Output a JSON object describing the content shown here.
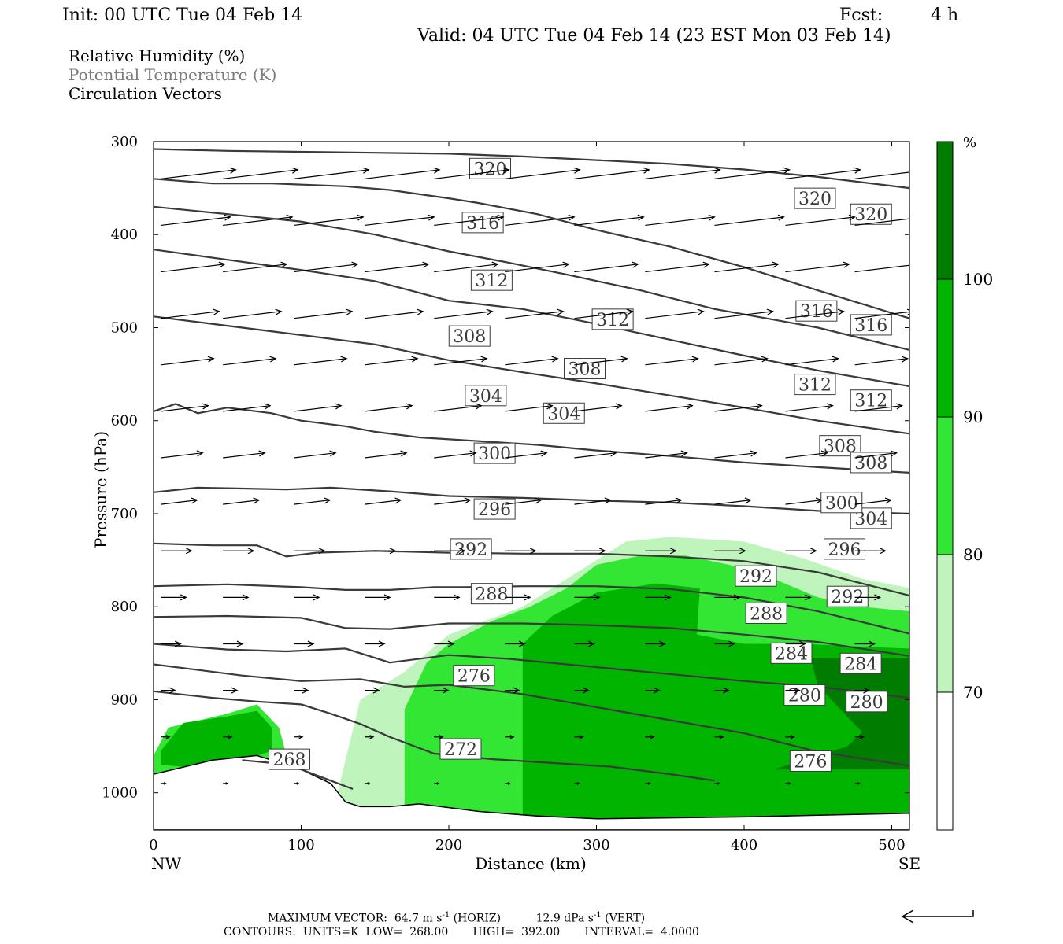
{
  "header": {
    "init": "Init: 00 UTC Tue 04 Feb 14",
    "fcst_label": "Fcst:",
    "fcst_value": "4 h",
    "valid": "Valid: 04 UTC Tue 04 Feb 14 (23 EST Mon 03 Feb 14)"
  },
  "fields": [
    {
      "label": "Relative Humidity (%)",
      "color": "#000000"
    },
    {
      "label": "Potential Temperature (K)",
      "color": "#7a7a7a"
    },
    {
      "label": "Circulation Vectors",
      "color": "#000000"
    }
  ],
  "chart_data": {
    "type": "cross-section",
    "ylabel": "Pressure (hPa)",
    "xlabel": "Distance (km)",
    "x_ticks": [
      0,
      100,
      200,
      300,
      400,
      500
    ],
    "y_ticks": [
      300,
      400,
      500,
      600,
      700,
      800,
      900,
      1000
    ],
    "xlim": [
      0,
      512
    ],
    "ylim": [
      300,
      1040
    ],
    "y_scale": "linear-inverted",
    "left_end_label": "NW",
    "right_end_label": "SE",
    "colorbar": {
      "unit": "%",
      "levels": [
        70,
        80,
        90,
        100
      ],
      "colors": [
        "#ffffff",
        "#bff5bc",
        "#33e633",
        "#00b400",
        "#007d00"
      ]
    },
    "theta_contours": [
      {
        "value": 320,
        "points": [
          [
            0,
            308
          ],
          [
            50,
            310
          ],
          [
            100,
            311
          ],
          [
            150,
            312
          ],
          [
            200,
            313
          ],
          [
            250,
            316
          ],
          [
            300,
            320
          ],
          [
            350,
            324
          ],
          [
            400,
            330
          ],
          [
            450,
            338
          ],
          [
            512,
            350
          ]
        ],
        "labels": [
          [
            228,
            329
          ],
          [
            448,
            361
          ],
          [
            486,
            378
          ]
        ]
      },
      {
        "value": 316,
        "points": [
          [
            0,
            340
          ],
          [
            40,
            345
          ],
          [
            80,
            345
          ],
          [
            130,
            348
          ],
          [
            160,
            352
          ],
          [
            200,
            361
          ],
          [
            220,
            366
          ],
          [
            260,
            378
          ],
          [
            300,
            395
          ],
          [
            350,
            413
          ],
          [
            400,
            435
          ],
          [
            450,
            460
          ],
          [
            512,
            490
          ]
        ],
        "labels": [
          [
            223,
            387
          ],
          [
            449,
            482
          ],
          [
            486,
            497
          ]
        ]
      },
      {
        "value": 312,
        "points": [
          [
            0,
            370
          ],
          [
            50,
            378
          ],
          [
            100,
            386
          ],
          [
            150,
            400
          ],
          [
            200,
            418
          ],
          [
            240,
            430
          ],
          [
            280,
            443
          ],
          [
            330,
            460
          ],
          [
            380,
            480
          ],
          [
            450,
            500
          ],
          [
            512,
            524
          ]
        ],
        "labels": [
          [
            229,
            449
          ],
          [
            311,
            491
          ],
          [
            448,
            561
          ],
          [
            486,
            578
          ]
        ]
      },
      {
        "value": 308,
        "points": [
          [
            0,
            416
          ],
          [
            50,
            427
          ],
          [
            100,
            438
          ],
          [
            150,
            450
          ],
          [
            200,
            471
          ],
          [
            250,
            480
          ],
          [
            300,
            496
          ],
          [
            350,
            513
          ],
          [
            400,
            530
          ],
          [
            450,
            546
          ],
          [
            512,
            563
          ]
        ],
        "labels": [
          [
            214,
            509
          ],
          [
            292,
            544
          ],
          [
            465,
            627
          ],
          [
            486,
            645
          ]
        ]
      },
      {
        "value": 304,
        "points": [
          [
            0,
            488
          ],
          [
            50,
            498
          ],
          [
            100,
            508
          ],
          [
            150,
            518
          ],
          [
            200,
            535
          ],
          [
            250,
            548
          ],
          [
            300,
            560
          ],
          [
            350,
            573
          ],
          [
            400,
            586
          ],
          [
            450,
            600
          ],
          [
            512,
            614
          ]
        ],
        "labels": [
          [
            225,
            573
          ],
          [
            278,
            592
          ],
          [
            486,
            705
          ]
        ]
      },
      {
        "value": 300,
        "points": [
          [
            0,
            590
          ],
          [
            15,
            582
          ],
          [
            30,
            592
          ],
          [
            50,
            586
          ],
          [
            80,
            592
          ],
          [
            100,
            600
          ],
          [
            130,
            606
          ],
          [
            150,
            612
          ],
          [
            180,
            618
          ],
          [
            220,
            622
          ],
          [
            260,
            626
          ],
          [
            300,
            632
          ],
          [
            350,
            638
          ],
          [
            400,
            645
          ],
          [
            450,
            650
          ],
          [
            512,
            656
          ]
        ],
        "labels": [
          [
            231,
            635
          ],
          [
            466,
            688
          ]
        ]
      },
      {
        "value": 296,
        "points": [
          [
            0,
            677
          ],
          [
            30,
            672
          ],
          [
            60,
            673
          ],
          [
            90,
            674
          ],
          [
            120,
            672
          ],
          [
            160,
            676
          ],
          [
            200,
            681
          ],
          [
            250,
            683
          ],
          [
            300,
            686
          ],
          [
            350,
            688
          ],
          [
            400,
            692
          ],
          [
            450,
            697
          ],
          [
            512,
            700
          ]
        ],
        "labels": [
          [
            231,
            695
          ],
          [
            468,
            738
          ]
        ]
      },
      {
        "value": 292,
        "points": [
          [
            0,
            732
          ],
          [
            40,
            734
          ],
          [
            70,
            734
          ],
          [
            90,
            746
          ],
          [
            110,
            742
          ],
          [
            150,
            740
          ],
          [
            200,
            742
          ],
          [
            250,
            743
          ],
          [
            300,
            743
          ],
          [
            350,
            746
          ],
          [
            400,
            751
          ],
          [
            450,
            763
          ],
          [
            512,
            788
          ]
        ],
        "labels": [
          [
            215,
            738
          ],
          [
            408,
            767
          ],
          [
            470,
            789
          ]
        ]
      },
      {
        "value": 288,
        "points": [
          [
            0,
            778
          ],
          [
            50,
            776
          ],
          [
            100,
            779
          ],
          [
            130,
            782
          ],
          [
            160,
            782
          ],
          [
            190,
            779
          ],
          [
            210,
            779
          ],
          [
            250,
            778
          ],
          [
            300,
            778
          ],
          [
            350,
            781
          ],
          [
            400,
            790
          ],
          [
            450,
            805
          ],
          [
            512,
            829
          ]
        ],
        "labels": [
          [
            229,
            786
          ],
          [
            415,
            807
          ]
        ]
      },
      {
        "value": 284,
        "points": [
          [
            0,
            811
          ],
          [
            50,
            810
          ],
          [
            100,
            812
          ],
          [
            130,
            823
          ],
          [
            160,
            824
          ],
          [
            200,
            818
          ],
          [
            250,
            818
          ],
          [
            300,
            820
          ],
          [
            350,
            823
          ],
          [
            400,
            830
          ],
          [
            450,
            838
          ],
          [
            512,
            853
          ]
        ],
        "labels": [
          [
            432,
            850
          ],
          [
            479,
            861
          ]
        ]
      },
      {
        "value": 280,
        "points": [
          [
            0,
            840
          ],
          [
            50,
            846
          ],
          [
            90,
            848
          ],
          [
            130,
            845
          ],
          [
            160,
            860
          ],
          [
            200,
            852
          ],
          [
            240,
            856
          ],
          [
            280,
            862
          ],
          [
            320,
            868
          ],
          [
            360,
            874
          ],
          [
            400,
            880
          ],
          [
            450,
            886
          ],
          [
            512,
            898
          ]
        ],
        "labels": [
          [
            441,
            895
          ],
          [
            483,
            902
          ]
        ]
      },
      {
        "value": 276,
        "points": [
          [
            0,
            862
          ],
          [
            60,
            874
          ],
          [
            100,
            880
          ],
          [
            140,
            878
          ],
          [
            170,
            886
          ],
          [
            200,
            884
          ],
          [
            250,
            894
          ],
          [
            300,
            908
          ],
          [
            350,
            922
          ],
          [
            400,
            936
          ],
          [
            450,
            956
          ],
          [
            512,
            971
          ]
        ],
        "labels": [
          [
            217,
            874
          ],
          [
            445,
            966
          ]
        ]
      },
      {
        "value": 272,
        "points": [
          [
            0,
            891
          ],
          [
            40,
            898
          ],
          [
            70,
            902
          ],
          [
            100,
            905
          ],
          [
            120,
            915
          ],
          [
            140,
            926
          ],
          [
            160,
            940
          ],
          [
            190,
            958
          ],
          [
            230,
            964
          ],
          [
            270,
            968
          ],
          [
            310,
            972
          ],
          [
            350,
            980
          ],
          [
            380,
            987
          ]
        ],
        "labels": [
          [
            208,
            953
          ]
        ]
      },
      {
        "value": 268,
        "points": [
          [
            60,
            965
          ],
          [
            80,
            968
          ],
          [
            100,
            975
          ],
          [
            120,
            987
          ],
          [
            135,
            996
          ]
        ],
        "labels": [
          [
            92,
            964
          ]
        ]
      }
    ],
    "circulation_vectors": {
      "x_km": [
        5,
        47,
        95,
        143,
        190,
        238,
        285,
        333,
        380,
        428,
        475
      ],
      "pressure_levels": [
        340,
        390,
        440,
        490,
        540,
        590,
        640,
        690,
        740,
        790,
        840,
        890,
        940,
        990
      ]
    },
    "max_vector": {
      "label": "MAXIMUM VECTOR:",
      "horiz": "64.7 m s",
      "horiz_exp": "-1",
      "horiz_tag": "(HORIZ)",
      "vert": "12.9 dPa s",
      "vert_exp": "-1",
      "vert_tag": "(VERT)"
    },
    "contour_info": {
      "label": "CONTOURS:",
      "units": "UNITS=K",
      "low": "LOW=",
      "low_value": "268.00",
      "high": "HIGH=",
      "high_value": "392.00",
      "interval": "INTERVAL=",
      "interval_value": "4.0000"
    }
  }
}
